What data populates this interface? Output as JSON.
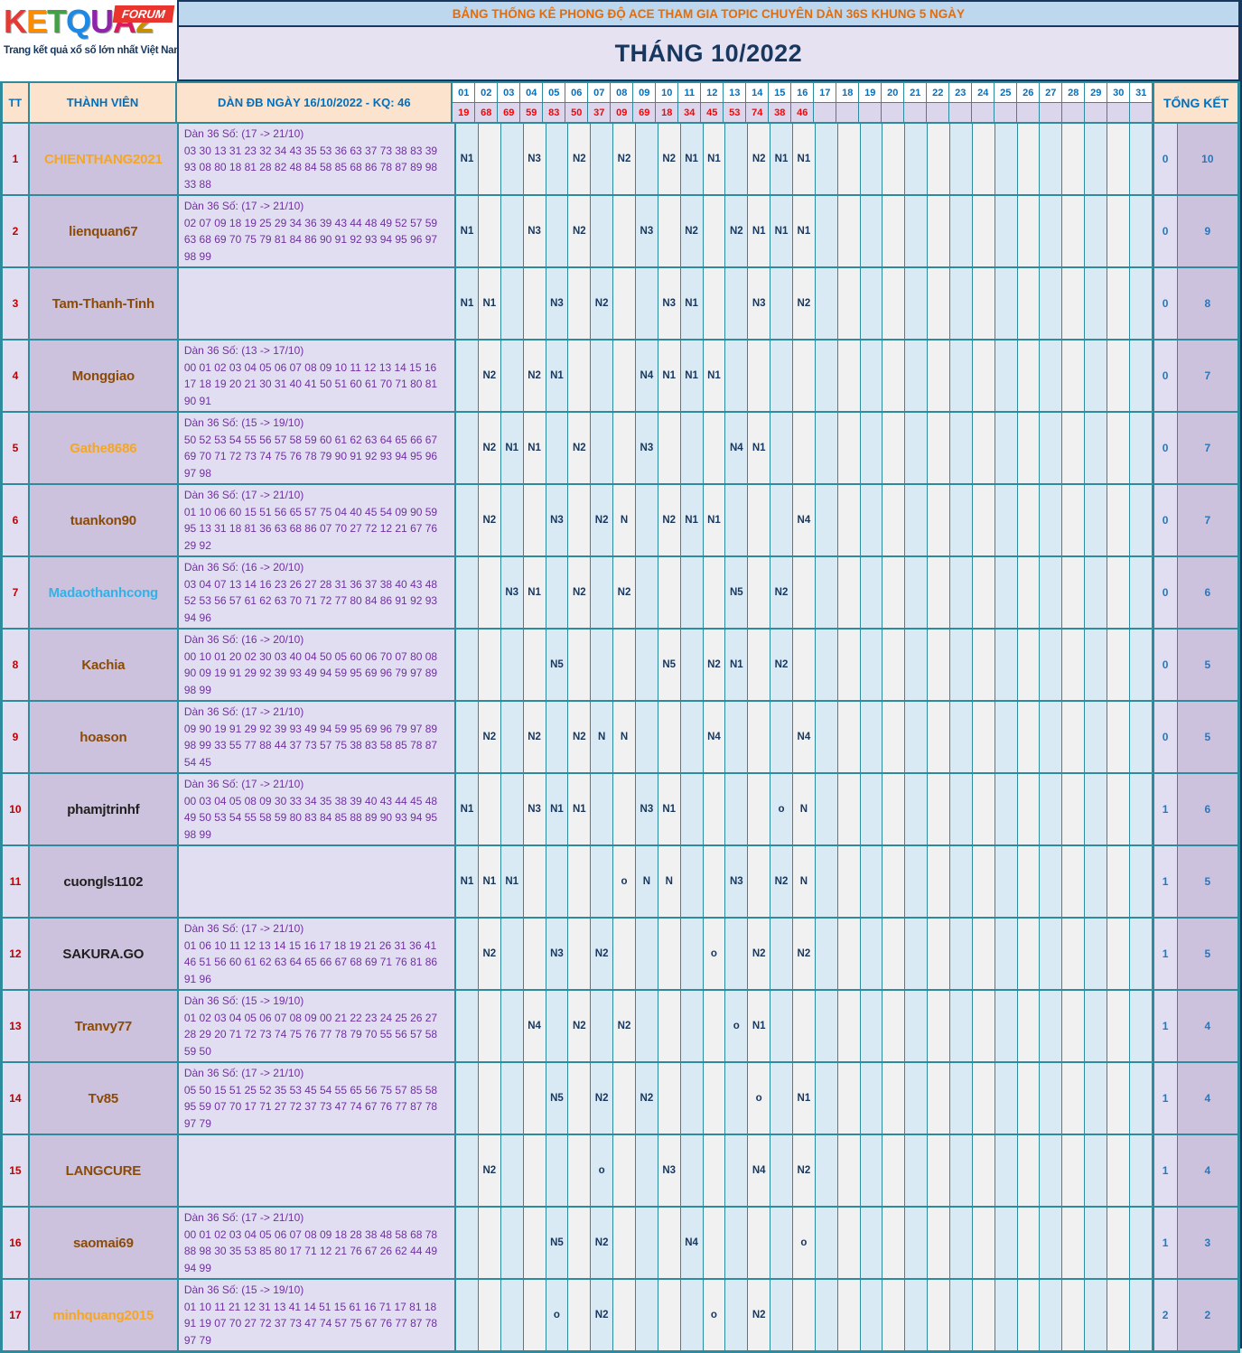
{
  "logo": {
    "letters": [
      {
        "t": "K",
        "c": "#e53935"
      },
      {
        "t": "E",
        "c": "#fb8c00"
      },
      {
        "t": "T",
        "c": "#43a047"
      },
      {
        "t": "Q",
        "c": "#1e88e5"
      },
      {
        "t": "U",
        "c": "#8e24aa"
      },
      {
        "t": "A",
        "c": "#d81b60"
      },
      {
        "t": "2",
        "c": "#c49000"
      }
    ],
    "badge": "FORUM",
    "tagline": "Trang kết quả xổ số lớn nhất Việt Nam"
  },
  "banner": {
    "title": "BẢNG THỐNG KÊ PHONG ĐỘ ACE THAM GIA TOPIC CHUYÊN DÀN 36S KHUNG 5 NGÀY",
    "month": "THÁNG 10/2022"
  },
  "colors": {
    "border_teal": "#2e8b9e",
    "header_peach": "#fbe3cd",
    "header_text_blue": "#0070c0",
    "banner_orange": "#e36c0a",
    "navy": "#17375e",
    "result_red": "#ff0000",
    "tt_red": "#c00000",
    "dan_purple": "#7030a0",
    "total_blue": "#2e75b6",
    "name_orange": "#f5a623",
    "name_brown": "#8a4a08",
    "name_cyan": "#33b1e6",
    "name_black": "#1f1f1f"
  },
  "table": {
    "headers": {
      "tt": "TT",
      "member": "THÀNH VIÊN",
      "dan": "DÀN ĐB NGÀY 16/10/2022 - KQ: 46",
      "total": "TỔNG KẾT"
    },
    "day_columns": [
      "01",
      "02",
      "03",
      "04",
      "05",
      "06",
      "07",
      "08",
      "09",
      "10",
      "11",
      "12",
      "13",
      "14",
      "15",
      "16",
      "17",
      "18",
      "19",
      "20",
      "21",
      "22",
      "23",
      "24",
      "25",
      "26",
      "27",
      "28",
      "29",
      "30",
      "31"
    ],
    "day_results": [
      "19",
      "68",
      "69",
      "59",
      "83",
      "50",
      "37",
      "09",
      "69",
      "18",
      "34",
      "45",
      "53",
      "74",
      "38",
      "46",
      "",
      "",
      "",
      "",
      "",
      "",
      "",
      "",
      "",
      "",
      "",
      "",
      "",
      "",
      ""
    ],
    "members": [
      {
        "tt": "1",
        "name": "CHIENTHANG2021",
        "name_color": "#f5a623",
        "dan_title": "Dàn 36 Số: (17 -> 21/10)",
        "dan_numbers": "03 30 13 31 23 32 34 43 35 53 36 63 37 73 38 83 39 93 08 80 18 81 28 82 48 84 58 85 68 86 78 87 89 98 33 88",
        "cells": {
          "1": "N1",
          "4": "N3",
          "6": "N2",
          "8": "N2",
          "10": "N2",
          "11": "N1",
          "12": "N1",
          "14": "N2",
          "15": "N1",
          "16": "N1"
        },
        "total": [
          "0",
          "10"
        ]
      },
      {
        "tt": "2",
        "name": "lienquan67",
        "name_color": "#8a4a08",
        "dan_title": "Dàn 36 Số: (17 -> 21/10)",
        "dan_numbers": "02 07 09 18 19 25 29 34 36 39 43 44 48 49 52 57 59 63 68 69 70 75 79 81 84 86 90 91 92 93 94 95 96 97 98 99",
        "cells": {
          "1": "N1",
          "4": "N3",
          "6": "N2",
          "9": "N3",
          "11": "N2",
          "13": "N2",
          "14": "N1",
          "15": "N1",
          "16": "N1"
        },
        "total": [
          "0",
          "9"
        ]
      },
      {
        "tt": "3",
        "name": "Tam-Thanh-Tinh",
        "name_color": "#8a4a08",
        "dan_title": "",
        "dan_numbers": "",
        "cells": {
          "1": "N1",
          "2": "N1",
          "5": "N3",
          "7": "N2",
          "10": "N3",
          "11": "N1",
          "14": "N3",
          "16": "N2"
        },
        "total": [
          "0",
          "8"
        ]
      },
      {
        "tt": "4",
        "name": "Monggiao",
        "name_color": "#8a4a08",
        "dan_title": "Dàn 36 Số: (13 -> 17/10)",
        "dan_numbers": "00 01 02 03 04 05 06 07 08 09 10 11 12 13 14 15 16 17 18 19 20 21 30 31 40 41 50 51 60 61 70 71 80 81 90 91",
        "cells": {
          "2": "N2",
          "4": "N2",
          "5": "N1",
          "9": "N4",
          "10": "N1",
          "11": "N1",
          "12": "N1"
        },
        "total": [
          "0",
          "7"
        ]
      },
      {
        "tt": "5",
        "name": "Gathe8686",
        "name_color": "#f5a623",
        "dan_title": "Dàn 36 Số: (15 -> 19/10)",
        "dan_numbers": "50 52 53 54 55 56 57 58 59 60 61 62 63 64 65 66 67 69 70 71 72 73 74 75 76 78 79 90 91 92 93 94 95 96 97 98",
        "cells": {
          "2": "N2",
          "3": "N1",
          "4": "N1",
          "6": "N2",
          "9": "N3",
          "13": "N4",
          "14": "N1"
        },
        "total": [
          "0",
          "7"
        ]
      },
      {
        "tt": "6",
        "name": "tuankon90",
        "name_color": "#8a4a08",
        "dan_title": "Dàn 36 Số: (17 -> 21/10)",
        "dan_numbers": "01 10 06 60 15 51 56 65 57 75 04 40 45 54 09 90 59 95 13 31 18 81 36 63 68 86 07 70 27 72 12 21 67 76 29 92",
        "cells": {
          "2": "N2",
          "5": "N3",
          "7": "N2",
          "8": "N",
          "10": "N2",
          "11": "N1",
          "12": "N1",
          "16": "N4"
        },
        "total": [
          "0",
          "7"
        ]
      },
      {
        "tt": "7",
        "name": "Madaothanhcong",
        "name_color": "#33b1e6",
        "dan_title": "Dàn 36 Số: (16 -> 20/10)",
        "dan_numbers": "03 04 07 13 14 16 23 26 27 28 31 36 37 38 40 43 48 52 53 56 57 61 62 63 70 71 72 77 80 84 86 91 92 93 94 96",
        "cells": {
          "3": "N3",
          "4": "N1",
          "6": "N2",
          "8": "N2",
          "13": "N5",
          "15": "N2"
        },
        "total": [
          "0",
          "6"
        ]
      },
      {
        "tt": "8",
        "name": "Kachia",
        "name_color": "#8a4a08",
        "dan_title": "Dàn 36 Số: (16 -> 20/10)",
        "dan_numbers": "00 10 01 20 02 30 03 40 04 50 05 60 06 70 07 80 08 90 09 19 91 29 92 39 93 49 94 59 95 69 96 79 97 89 98 99",
        "cells": {
          "5": "N5",
          "10": "N5",
          "12": "N2",
          "13": "N1",
          "15": "N2"
        },
        "total": [
          "0",
          "5"
        ]
      },
      {
        "tt": "9",
        "name": "hoason",
        "name_color": "#8a4a08",
        "dan_title": "Dàn 36 Số: (17 -> 21/10)",
        "dan_numbers": "09 90 19 91 29 92 39 93 49 94 59 95 69 96 79 97 89 98 99 33 55 77 88 44 37 73 57 75 38 83 58 85 78 87 54 45",
        "cells": {
          "2": "N2",
          "4": "N2",
          "6": "N2",
          "7": "N",
          "8": "N",
          "12": "N4",
          "16": "N4"
        },
        "total": [
          "0",
          "5"
        ]
      },
      {
        "tt": "10",
        "name": "phamjtrinhf",
        "name_color": "#1f1f1f",
        "dan_title": "Dàn 36 Số: (17 -> 21/10)",
        "dan_numbers": "00 03 04 05 08 09 30 33 34 35 38 39 40 43 44 45 48 49 50 53 54 55 58 59 80 83 84 85 88 89 90 93 94 95 98 99",
        "cells": {
          "1": "N1",
          "4": "N3",
          "5": "N1",
          "6": "N1",
          "9": "N3",
          "10": "N1",
          "15": "o",
          "16": "N"
        },
        "total": [
          "1",
          "6"
        ]
      },
      {
        "tt": "11",
        "name": "cuongls1102",
        "name_color": "#1f1f1f",
        "dan_title": "",
        "dan_numbers": "",
        "cells": {
          "1": "N1",
          "2": "N1",
          "3": "N1",
          "8": "o",
          "9": "N",
          "10": "N",
          "13": "N3",
          "15": "N2",
          "16": "N"
        },
        "total": [
          "1",
          "5"
        ]
      },
      {
        "tt": "12",
        "name": "SAKURA.GO",
        "name_color": "#1f1f1f",
        "dan_title": "Dàn 36 Số: (17 -> 21/10)",
        "dan_numbers": "01 06 10 11 12 13 14 15 16 17 18 19 21 26 31 36 41 46 51 56 60 61 62 63 64 65 66 67 68 69 71 76 81 86 91 96",
        "cells": {
          "2": "N2",
          "5": "N3",
          "7": "N2",
          "12": "o",
          "14": "N2",
          "16": "N2"
        },
        "total": [
          "1",
          "5"
        ]
      },
      {
        "tt": "13",
        "name": "Tranvy77",
        "name_color": "#8a4a08",
        "dan_title": "Dàn 36 Số: (15 -> 19/10)",
        "dan_numbers": "01 02 03 04 05 06 07 08 09 00 21 22 23 24 25 26 27 28 29 20 71 72 73 74 75 76 77 78 79 70 55 56 57 58 59 50",
        "cells": {
          "4": "N4",
          "6": "N2",
          "8": "N2",
          "13": "o",
          "14": "N1"
        },
        "total": [
          "1",
          "4"
        ]
      },
      {
        "tt": "14",
        "name": "Tv85",
        "name_color": "#8a4a08",
        "dan_title": "Dàn 36 Số: (17 -> 21/10)",
        "dan_numbers": "05 50 15 51 25 52 35 53 45 54 55 65 56 75 57 85 58 95 59 07 70 17 71 27 72 37 73 47 74 67 76 77 87 78 97 79",
        "cells": {
          "5": "N5",
          "7": "N2",
          "9": "N2",
          "14": "o",
          "16": "N1"
        },
        "total": [
          "1",
          "4"
        ]
      },
      {
        "tt": "15",
        "name": "LANGCURE",
        "name_color": "#8a4a08",
        "dan_title": "",
        "dan_numbers": "",
        "cells": {
          "2": "N2",
          "7": "o",
          "10": "N3",
          "14": "N4",
          "16": "N2"
        },
        "total": [
          "1",
          "4"
        ]
      },
      {
        "tt": "16",
        "name": "saomai69",
        "name_color": "#8a4a08",
        "dan_title": "Dàn 36 Số: (17 -> 21/10)",
        "dan_numbers": "00 01 02 03 04 05 06 07 08 09 18 28 38 48 58 68 78 88 98 30 35 53 85 80 17 71 12 21 76 67 26 62 44 49 94 99",
        "cells": {
          "5": "N5",
          "7": "N2",
          "11": "N4",
          "16": "o"
        },
        "total": [
          "1",
          "3"
        ]
      },
      {
        "tt": "17",
        "name": "minhquang2015",
        "name_color": "#f5a623",
        "dan_title": "Dàn 36 Số: (15 -> 19/10)",
        "dan_numbers": "01 10 11 21 12 31 13 41 14 51 15 61 16 71 17 81 18 91 19 07 70 27 72 37 73 47 74 57 75 67 76 77 87 78 97 79",
        "cells": {
          "5": "o",
          "7": "N2",
          "12": "o",
          "14": "N2"
        },
        "total": [
          "2",
          "2"
        ]
      }
    ]
  }
}
